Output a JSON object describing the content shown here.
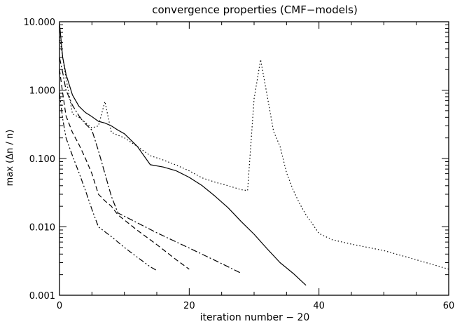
{
  "chart_data": {
    "type": "line",
    "title": "convergence properties (CMF−models)",
    "xlabel": "iteration number − 20",
    "ylabel": "max (Δn / n)",
    "xlim": [
      0,
      60
    ],
    "ylim": [
      0.001,
      10
    ],
    "yscale": "log",
    "grid": false,
    "x_ticks": [
      0,
      20,
      40,
      60
    ],
    "x_tick_labels": [
      "0",
      "20",
      "40",
      "60"
    ],
    "y_ticks": [
      0.001,
      0.01,
      0.1,
      1,
      10
    ],
    "y_tick_labels": [
      "0.001",
      "0.010",
      "0.100",
      "1.000",
      "10.000"
    ],
    "series": [
      {
        "style": "solid",
        "x": [
          0,
          0.5,
          1,
          2,
          3,
          4,
          5,
          6,
          7,
          8,
          9,
          10,
          12,
          14,
          16,
          18,
          20,
          22,
          24,
          26,
          28,
          30,
          32,
          34,
          36,
          38
        ],
        "y": [
          9.5,
          3.0,
          1.7,
          0.85,
          0.58,
          0.47,
          0.41,
          0.35,
          0.33,
          0.3,
          0.26,
          0.23,
          0.15,
          0.081,
          0.075,
          0.066,
          0.053,
          0.04,
          0.028,
          0.019,
          0.012,
          0.0078,
          0.0048,
          0.003,
          0.0021,
          0.0014
        ]
      },
      {
        "style": "dotted",
        "x": [
          0,
          0.5,
          1,
          2,
          3,
          5,
          6,
          7,
          8,
          10,
          12,
          14,
          16,
          18,
          20,
          22,
          24,
          26,
          28,
          29,
          30,
          31,
          32,
          33,
          34,
          35,
          36,
          37,
          38,
          39,
          40,
          42,
          45,
          50,
          55,
          60
        ],
        "y": [
          6.0,
          3.0,
          1.5,
          0.45,
          0.4,
          0.28,
          0.3,
          0.68,
          0.24,
          0.2,
          0.15,
          0.11,
          0.095,
          0.08,
          0.066,
          0.052,
          0.045,
          0.04,
          0.035,
          0.034,
          0.75,
          2.8,
          0.85,
          0.25,
          0.15,
          0.062,
          0.035,
          0.022,
          0.015,
          0.011,
          0.008,
          0.0065,
          0.0056,
          0.0045,
          0.0033,
          0.0024
        ]
      },
      {
        "style": "dash-dot",
        "x": [
          0,
          0.5,
          1,
          2,
          3,
          4,
          5,
          6,
          7,
          8,
          9,
          15,
          20,
          25,
          28
        ],
        "y": [
          3.0,
          1.8,
          1.0,
          0.6,
          0.42,
          0.32,
          0.26,
          0.13,
          0.06,
          0.028,
          0.016,
          0.0082,
          0.0049,
          0.0029,
          0.0021
        ]
      },
      {
        "style": "dashed",
        "x": [
          0,
          0.5,
          1,
          2,
          3,
          4,
          5,
          6,
          7,
          8,
          9,
          12,
          15,
          18,
          20
        ],
        "y": [
          2.0,
          0.9,
          0.42,
          0.24,
          0.16,
          0.1,
          0.06,
          0.03,
          0.024,
          0.02,
          0.015,
          0.0089,
          0.0055,
          0.0033,
          0.0024
        ]
      },
      {
        "style": "dash-dot-dot",
        "x": [
          0,
          0.5,
          1,
          2,
          3,
          4,
          5,
          6,
          8,
          10,
          12,
          14,
          15
        ],
        "y": [
          0.9,
          0.38,
          0.2,
          0.11,
          0.062,
          0.034,
          0.018,
          0.01,
          0.0072,
          0.005,
          0.0036,
          0.0026,
          0.0023
        ]
      }
    ]
  }
}
